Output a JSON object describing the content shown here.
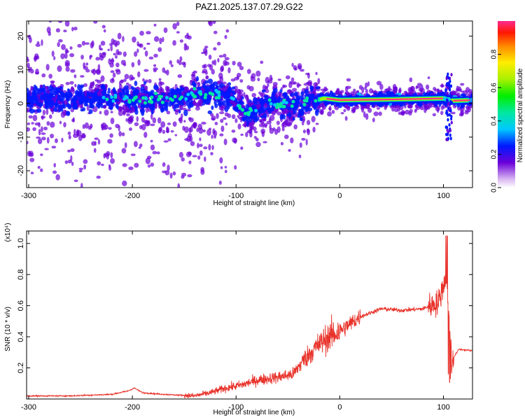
{
  "title": "PAZ1.2025.137.07.29.G22",
  "chart_data": [
    {
      "type": "heatmap",
      "xlabel": "Height of straight line (km)",
      "ylabel": "Frequency (Hz)",
      "xlim": [
        -302,
        128
      ],
      "ylim": [
        -25,
        24.5
      ],
      "xticks": [
        -300,
        -200,
        -100,
        0,
        100
      ],
      "yticks": [
        -20,
        -10,
        0,
        10,
        20
      ],
      "colorbar": {
        "label": "Normalized spectral amplitude",
        "range": [
          0,
          1
        ],
        "ticks": [
          0,
          0.2,
          0.4,
          0.6,
          0.8
        ],
        "tick_labels": [
          "0.0",
          "0.2",
          "0.4",
          "0.6",
          "0.8"
        ]
      },
      "ridge": [
        {
          "x": -300,
          "y": 1.5
        },
        {
          "x": -260,
          "y": 1.2
        },
        {
          "x": -220,
          "y": 1.8
        },
        {
          "x": -180,
          "y": 1.0
        },
        {
          "x": -140,
          "y": 2.5
        },
        {
          "x": -120,
          "y": 3.0
        },
        {
          "x": -100,
          "y": 1.0
        },
        {
          "x": -90,
          "y": -3.5
        },
        {
          "x": -70,
          "y": 0.5
        },
        {
          "x": -50,
          "y": -0.5
        },
        {
          "x": -30,
          "y": 0.5
        },
        {
          "x": -15,
          "y": 1.5
        },
        {
          "x": 0,
          "y": 1.0
        },
        {
          "x": 50,
          "y": 1.2
        },
        {
          "x": 100,
          "y": 1.5
        },
        {
          "x": 110,
          "y": 0.8
        },
        {
          "x": 128,
          "y": 1.0
        }
      ]
    },
    {
      "type": "line",
      "xlabel": "Height of straight line (km)",
      "ylabel": "SNR (10 * v/v)",
      "exponent_label": "(x10⁴)",
      "xlim": [
        -302,
        128
      ],
      "ylim": [
        0,
        1.08
      ],
      "xticks": [
        -300,
        -200,
        -100,
        0,
        100
      ],
      "yticks": [
        0.2,
        0.4,
        0.6,
        0.8,
        1.0
      ],
      "ytick_labels": [
        "0.2",
        "0.4",
        "0.6",
        "0.8",
        "1.0"
      ],
      "series": [
        {
          "color": "#e8322a",
          "x": [
            -302,
            -260,
            -220,
            -205,
            -198,
            -190,
            -170,
            -140,
            -125,
            -110,
            -95,
            -80,
            -60,
            -45,
            -35,
            -25,
            -15,
            -5,
            5,
            20,
            40,
            60,
            80,
            95,
            103,
            108,
            115,
            128
          ],
          "y": [
            0.02,
            0.02,
            0.03,
            0.05,
            0.07,
            0.04,
            0.03,
            0.02,
            0.04,
            0.07,
            0.09,
            0.12,
            0.14,
            0.16,
            0.25,
            0.32,
            0.38,
            0.42,
            0.46,
            0.53,
            0.58,
            0.57,
            0.58,
            0.62,
            0.8,
            0.25,
            0.32,
            0.31
          ]
        }
      ]
    }
  ]
}
